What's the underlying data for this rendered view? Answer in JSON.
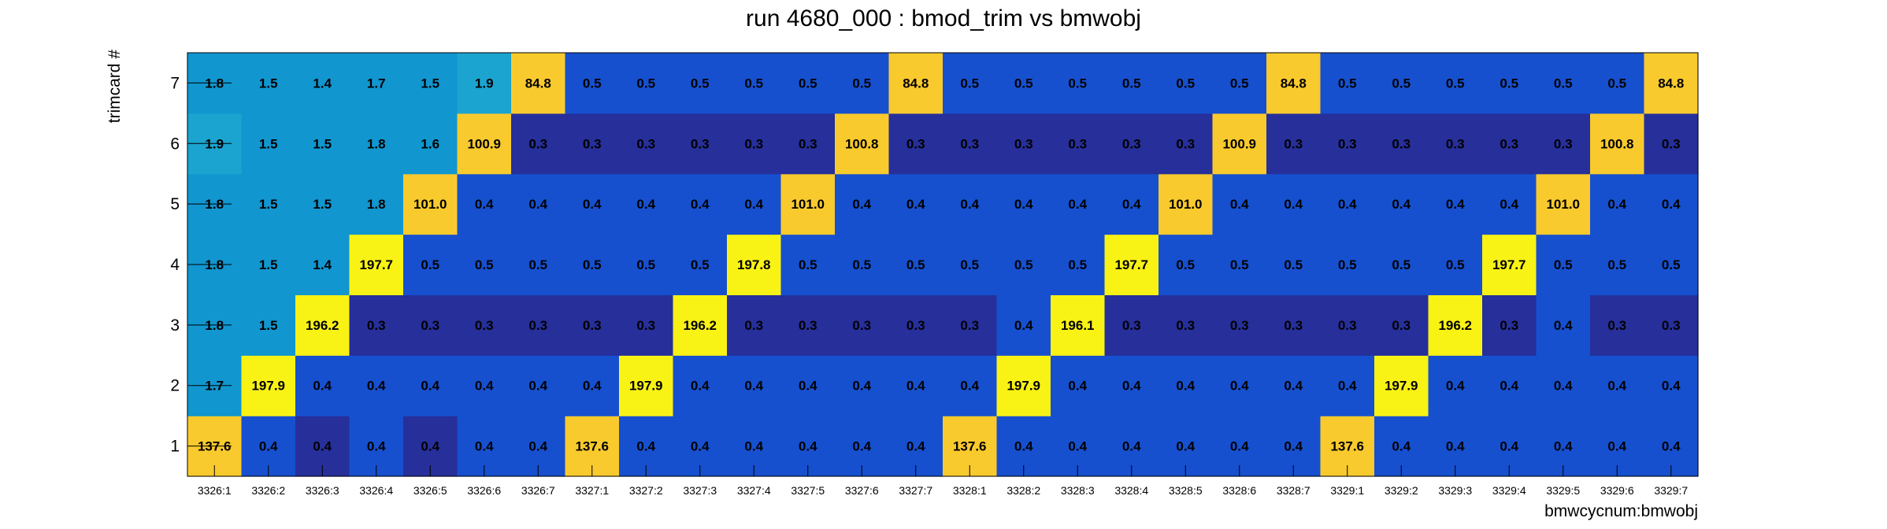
{
  "chart_data": {
    "type": "heatmap",
    "title": "run 4680_000 : bmod_trim vs bmwobj",
    "xlabel": "bmwcycnum:bmwobj",
    "ylabel": "trimcard #",
    "x_categories": [
      "3326:1",
      "3326:2",
      "3326:3",
      "3326:4",
      "3326:5",
      "3326:6",
      "3326:7",
      "3327:1",
      "3327:2",
      "3327:3",
      "3327:4",
      "3327:5",
      "3327:6",
      "3327:7",
      "3328:1",
      "3328:2",
      "3328:3",
      "3328:4",
      "3328:5",
      "3328:6",
      "3328:7",
      "3329:1",
      "3329:2",
      "3329:3",
      "3329:4",
      "3329:5",
      "3329:6",
      "3329:7"
    ],
    "y_categories": [
      "1",
      "2",
      "3",
      "4",
      "5",
      "6",
      "7"
    ],
    "values": [
      [
        "137.6",
        "0.4",
        "0.4",
        "0.4",
        "0.4",
        "0.4",
        "0.4",
        "137.6",
        "0.4",
        "0.4",
        "0.4",
        "0.4",
        "0.4",
        "0.4",
        "137.6",
        "0.4",
        "0.4",
        "0.4",
        "0.4",
        "0.4",
        "0.4",
        "137.6",
        "0.4",
        "0.4",
        "0.4",
        "0.4",
        "0.4",
        "0.4"
      ],
      [
        "1.7",
        "197.9",
        "0.4",
        "0.4",
        "0.4",
        "0.4",
        "0.4",
        "0.4",
        "197.9",
        "0.4",
        "0.4",
        "0.4",
        "0.4",
        "0.4",
        "0.4",
        "197.9",
        "0.4",
        "0.4",
        "0.4",
        "0.4",
        "0.4",
        "0.4",
        "197.9",
        "0.4",
        "0.4",
        "0.4",
        "0.4",
        "0.4"
      ],
      [
        "1.8",
        "1.5",
        "196.2",
        "0.3",
        "0.3",
        "0.3",
        "0.3",
        "0.3",
        "0.3",
        "196.2",
        "0.3",
        "0.3",
        "0.3",
        "0.3",
        "0.3",
        "0.4",
        "196.1",
        "0.3",
        "0.3",
        "0.3",
        "0.3",
        "0.3",
        "0.3",
        "196.2",
        "0.3",
        "0.4",
        "0.3",
        "0.3"
      ],
      [
        "1.8",
        "1.5",
        "1.4",
        "197.7",
        "0.5",
        "0.5",
        "0.5",
        "0.5",
        "0.5",
        "0.5",
        "197.8",
        "0.5",
        "0.5",
        "0.5",
        "0.5",
        "0.5",
        "0.5",
        "197.7",
        "0.5",
        "0.5",
        "0.5",
        "0.5",
        "0.5",
        "0.5",
        "197.7",
        "0.5",
        "0.5",
        "0.5"
      ],
      [
        "1.8",
        "1.5",
        "1.5",
        "1.8",
        "101.0",
        "0.4",
        "0.4",
        "0.4",
        "0.4",
        "0.4",
        "0.4",
        "101.0",
        "0.4",
        "0.4",
        "0.4",
        "0.4",
        "0.4",
        "0.4",
        "101.0",
        "0.4",
        "0.4",
        "0.4",
        "0.4",
        "0.4",
        "0.4",
        "101.0",
        "0.4",
        "0.4"
      ],
      [
        "1.9",
        "1.5",
        "1.5",
        "1.8",
        "1.6",
        "100.9",
        "0.3",
        "0.3",
        "0.3",
        "0.3",
        "0.3",
        "0.3",
        "100.8",
        "0.3",
        "0.3",
        "0.3",
        "0.3",
        "0.3",
        "0.3",
        "100.9",
        "0.3",
        "0.3",
        "0.3",
        "0.3",
        "0.3",
        "0.3",
        "100.8",
        "0.3"
      ],
      [
        "1.8",
        "1.5",
        "1.4",
        "1.7",
        "1.5",
        "1.9",
        "84.8",
        "0.5",
        "0.5",
        "0.5",
        "0.5",
        "0.5",
        "0.5",
        "84.8",
        "0.5",
        "0.5",
        "0.5",
        "0.5",
        "0.5",
        "0.5",
        "84.8",
        "0.5",
        "0.5",
        "0.5",
        "0.5",
        "0.5",
        "0.5",
        "84.8"
      ]
    ],
    "colors": {
      "c_0_3": "#262f9a",
      "c_0_4": "#1650cf",
      "c_0_5": "#1650cf",
      "c_1_4": "#1196cf",
      "c_2": "#1196cf",
      "c_85": "#f9ca2d",
      "c_101": "#f9ca2d",
      "c_137": "#f9ca2d",
      "c_196": "#f9f215"
    },
    "cell_colors_by_row_exceptions": {
      "note_free": ""
    },
    "grid": false,
    "legend": "none"
  }
}
